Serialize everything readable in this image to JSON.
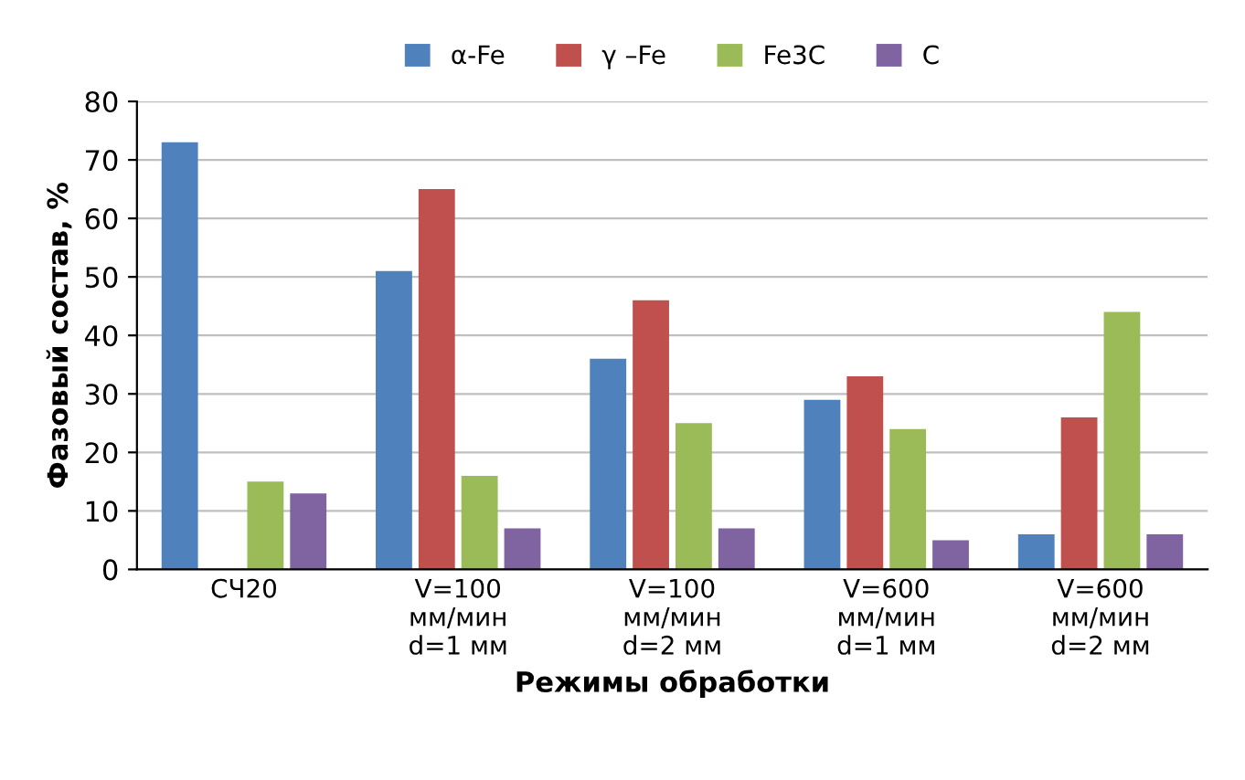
{
  "chart_data": {
    "type": "bar",
    "xlabel": "Режимы обработки",
    "ylabel": "Фазовый состав, %",
    "categories": [
      "СЧ20",
      "V=100\nмм/мин\nd=1 мм",
      "V=100\nмм/мин\nd=2 мм",
      "V=600\nмм/мин\nd=1 мм",
      "V=600\nмм/мин\nd=2 мм"
    ],
    "series": [
      {
        "name": "α-Fe",
        "color": "#4f81bd",
        "values": [
          73,
          51,
          36,
          29,
          6
        ]
      },
      {
        "name": "γ –Fe",
        "color": "#c0504d",
        "values": [
          0,
          65,
          46,
          33,
          26
        ]
      },
      {
        "name": "Fe3C",
        "color": "#9bbb59",
        "values": [
          15,
          16,
          25,
          24,
          44
        ]
      },
      {
        "name": "C",
        "color": "#8064a2",
        "values": [
          13,
          7,
          7,
          5,
          6
        ]
      }
    ],
    "ylim": [
      0,
      80
    ],
    "yticks": [
      0,
      10,
      20,
      30,
      40,
      50,
      60,
      70,
      80
    ],
    "grid": "y",
    "legend": "top"
  }
}
